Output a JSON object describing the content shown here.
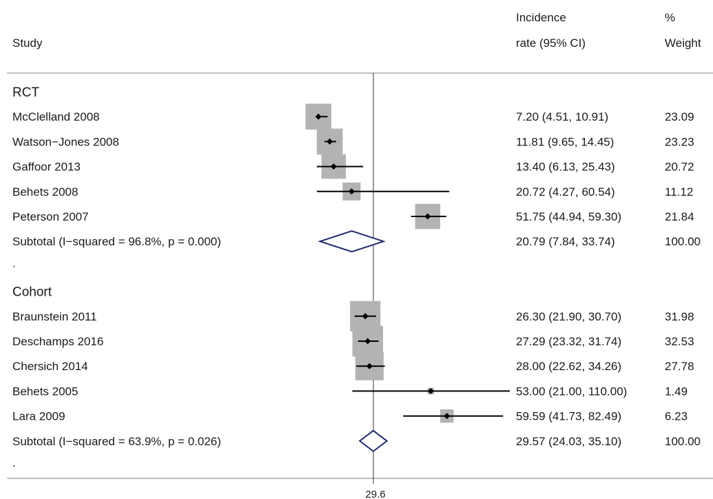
{
  "headers": {
    "study": "Study",
    "incidence_line1": "Incidence",
    "incidence_line2": "rate (95% CI)",
    "weight_line1": "%",
    "weight_line2": "Weight"
  },
  "chart_data": {
    "type": "forest",
    "title": "",
    "reference_line": 29.6,
    "reference_label": "29.6",
    "groups": [
      {
        "name": "RCT",
        "studies": [
          {
            "label": "McClelland 2008",
            "estimate": 7.2,
            "ci": [
              4.51,
              10.91
            ],
            "ci_text": "7.20 (4.51, 10.91)",
            "weight": "23.09"
          },
          {
            "label": "Watson−Jones 2008",
            "estimate": 11.81,
            "ci": [
              9.65,
              14.45
            ],
            "ci_text": "11.81 (9.65, 14.45)",
            "weight": "23.23"
          },
          {
            "label": "Gaffoor 2013",
            "estimate": 13.4,
            "ci": [
              6.13,
              25.43
            ],
            "ci_text": "13.40 (6.13, 25.43)",
            "weight": "20.72"
          },
          {
            "label": "Behets 2008",
            "estimate": 20.72,
            "ci": [
              4.27,
              60.54
            ],
            "ci_text": "20.72 (4.27, 60.54)",
            "weight": "11.12"
          },
          {
            "label": "Peterson 2007",
            "estimate": 51.75,
            "ci": [
              44.94,
              59.3
            ],
            "ci_text": "51.75 (44.94, 59.30)",
            "weight": "21.84"
          }
        ],
        "subtotal": {
          "label": "Subtotal  (I−squared = 96.8%, p = 0.000)",
          "estimate": 20.79,
          "ci": [
            7.84,
            33.74
          ],
          "ci_text": "20.79 (7.84, 33.74)",
          "weight": "100.00"
        }
      },
      {
        "name": "Cohort",
        "studies": [
          {
            "label": "Braunstein 2011",
            "estimate": 26.3,
            "ci": [
              21.9,
              30.7
            ],
            "ci_text": "26.30 (21.90, 30.70)",
            "weight": "31.98"
          },
          {
            "label": "Deschamps 2016",
            "estimate": 27.29,
            "ci": [
              23.32,
              31.74
            ],
            "ci_text": "27.29 (23.32, 31.74)",
            "weight": "32.53"
          },
          {
            "label": "Chersich 2014",
            "estimate": 28.0,
            "ci": [
              22.62,
              34.26
            ],
            "ci_text": "28.00 (22.62, 34.26)",
            "weight": "27.78"
          },
          {
            "label": "Behets 2005",
            "estimate": 53.0,
            "ci": [
              21.0,
              110.0
            ],
            "ci_text": "53.00 (21.00, 110.00)",
            "weight": "1.49"
          },
          {
            "label": "Lara 2009",
            "estimate": 59.59,
            "ci": [
              41.73,
              82.49
            ],
            "ci_text": "59.59 (41.73, 82.49)",
            "weight": "6.23"
          }
        ],
        "subtotal": {
          "label": "Subtotal  (I−squared = 63.9%, p = 0.026)",
          "estimate": 29.57,
          "ci": [
            24.03,
            35.1
          ],
          "ci_text": "29.57 (24.03, 35.10)",
          "weight": "100.00"
        }
      }
    ],
    "separator": ".",
    "colors": {
      "box": "#b3b3b3",
      "diamond": "#1f2a6b",
      "line": "#000000",
      "rule": "#9a9a9a"
    }
  }
}
